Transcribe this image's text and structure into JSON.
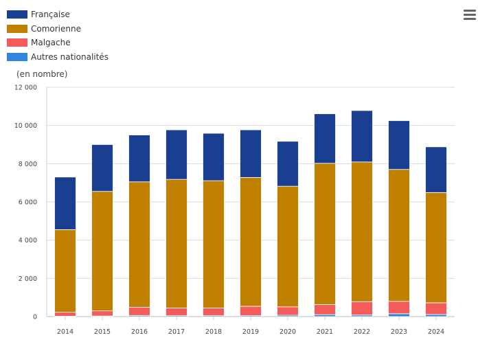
{
  "unit_label": "(en nombre)",
  "menu_icon": "hamburger-menu-icon",
  "chart_data": {
    "type": "bar",
    "stacked": true,
    "categories": [
      "2014",
      "2015",
      "2016",
      "2017",
      "2018",
      "2019",
      "2020",
      "2021",
      "2022",
      "2023",
      "2024"
    ],
    "series": [
      {
        "name": "Autres nationalités",
        "color": "#2E86DE",
        "values": [
          20,
          30,
          60,
          50,
          50,
          50,
          70,
          100,
          80,
          150,
          110
        ]
      },
      {
        "name": "Malgache",
        "color": "#F45B5B",
        "values": [
          210,
          270,
          430,
          400,
          400,
          490,
          440,
          530,
          700,
          650,
          610
        ]
      },
      {
        "name": "Comorienne",
        "color": "#BF8000",
        "values": [
          4320,
          6250,
          6560,
          6730,
          6660,
          6740,
          6310,
          7390,
          7310,
          6900,
          5770
        ]
      },
      {
        "name": "Française",
        "color": "#1A3F91",
        "values": [
          2750,
          2450,
          2450,
          2590,
          2480,
          2490,
          2350,
          2590,
          2690,
          2550,
          2390
        ]
      }
    ],
    "legend_order": [
      "Française",
      "Comorienne",
      "Malgache",
      "Autres nationalités"
    ],
    "ylim": [
      0,
      12000
    ],
    "yticks": [
      "0",
      "2 000",
      "4 000",
      "6 000",
      "8 000",
      "10 000",
      "12 000"
    ],
    "ytick_values": [
      0,
      2000,
      4000,
      6000,
      8000,
      10000,
      12000
    ],
    "ylabel": "(en nombre)",
    "grid": true,
    "legend_position": "top-left"
  }
}
